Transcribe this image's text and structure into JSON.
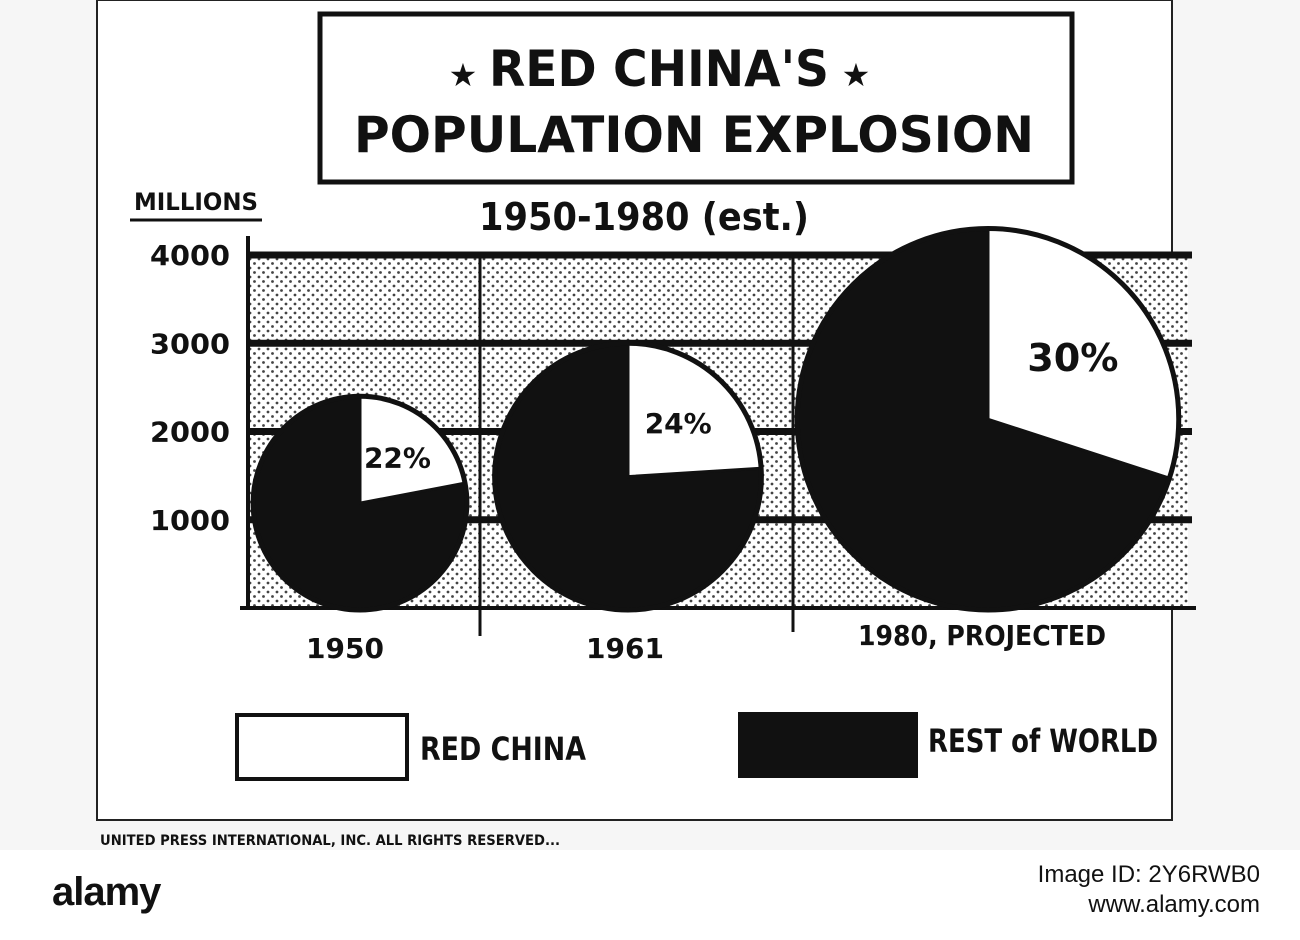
{
  "chart_data": {
    "type": "pie",
    "title": "RED CHINA'S POPULATION EXPLOSION",
    "title_line1": "RED CHINA'S",
    "title_line2": "POPULATION EXPLOSION",
    "title_star": "★",
    "subtitle": "1950-1980 (est.)",
    "ylabel": "MILLIONS",
    "ylim": [
      0,
      4000
    ],
    "yticks": [
      1000,
      2000,
      3000,
      4000
    ],
    "grid": true,
    "legend_position": "bottom",
    "colors": {
      "red_china": "#ffffff",
      "rest_of_world": "#111111"
    },
    "legend": [
      {
        "name": "RED CHINA",
        "color": "#ffffff"
      },
      {
        "name": "REST of WORLD",
        "color": "#111111"
      }
    ],
    "pies": [
      {
        "category": "1950",
        "population_millions": 2400,
        "slices": [
          {
            "name": "RED CHINA",
            "value": 22,
            "label": "22%"
          },
          {
            "name": "REST of WORLD",
            "value": 78
          }
        ]
      },
      {
        "category": "1961",
        "population_millions": 3000,
        "slices": [
          {
            "name": "RED CHINA",
            "value": 24,
            "label": "24%"
          },
          {
            "name": "REST of WORLD",
            "value": 76
          }
        ]
      },
      {
        "category": "1980, PROJECTED",
        "population_millions": 4300,
        "slices": [
          {
            "name": "RED CHINA",
            "value": 30,
            "label": "30%"
          },
          {
            "name": "REST of WORLD",
            "value": 70
          }
        ]
      }
    ]
  },
  "credit": "UNITED PRESS INTERNATIONAL, INC. ALL RIGHTS RESERVED...",
  "watermark": {
    "brand": "alamy",
    "image_id": "Image ID: 2Y6RWB0",
    "site": "www.alamy.com"
  }
}
